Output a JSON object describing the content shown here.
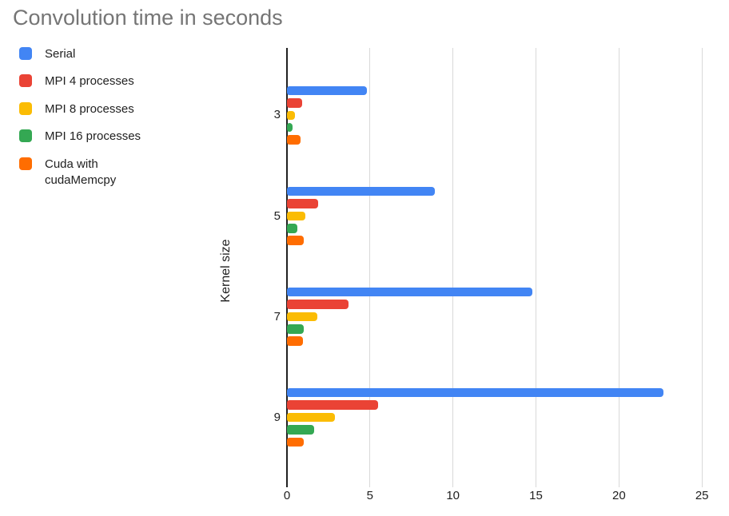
{
  "title": "Convolution time in seconds",
  "legend": {
    "items": [
      {
        "id": "serial",
        "label": "Serial",
        "color": "#4285F4"
      },
      {
        "id": "mpi-4-processes",
        "label": "MPI 4 processes",
        "color": "#EA4335"
      },
      {
        "id": "mpi-8-processes",
        "label": "MPI 8 processes",
        "color": "#FBBC04"
      },
      {
        "id": "mpi-16-processes",
        "label": "MPI 16 processes",
        "color": "#34A853"
      },
      {
        "id": "cuda-with-cudamemcpy",
        "label": "Cuda with\ncudaMemcpy",
        "color": "#FF6D01"
      }
    ]
  },
  "chart_data": {
    "type": "bar",
    "orientation": "horizontal",
    "title": "Convolution time in seconds",
    "xlabel": "",
    "ylabel": "Kernel size",
    "categories": [
      "3",
      "5",
      "7",
      "9"
    ],
    "series": [
      {
        "id": "serial",
        "name": "Serial",
        "color": "#4285F4",
        "values": [
          4.8,
          8.9,
          14.8,
          22.7
        ]
      },
      {
        "id": "mpi-4-processes",
        "name": "MPI 4 processes",
        "color": "#EA4335",
        "values": [
          0.9,
          1.9,
          3.7,
          5.5
        ]
      },
      {
        "id": "mpi-8-processes",
        "name": "MPI 8 processes",
        "color": "#FBBC04",
        "values": [
          0.5,
          1.1,
          1.85,
          2.9
        ]
      },
      {
        "id": "mpi-16-processes",
        "name": "MPI 16 processes",
        "color": "#34A853",
        "values": [
          0.35,
          0.65,
          1.0,
          1.65
        ]
      },
      {
        "id": "cuda-with-cudamemcpy",
        "name": "Cuda with cudaMemcpy",
        "color": "#FF6D01",
        "values": [
          0.8,
          1.0,
          0.95,
          1.0
        ]
      }
    ],
    "x_axis": {
      "min": 0,
      "max": 25,
      "ticks": [
        0,
        5,
        10,
        15,
        20,
        25
      ],
      "tick_labels": [
        "0",
        "5",
        "10",
        "15",
        "20",
        "25"
      ]
    },
    "grid": true,
    "legend_position": "top-left",
    "colors": {
      "title_text": "#757575",
      "axis_text": "#212121",
      "gridline": "#d9d9d9",
      "axis_line": "#212121",
      "background": "#ffffff"
    }
  }
}
